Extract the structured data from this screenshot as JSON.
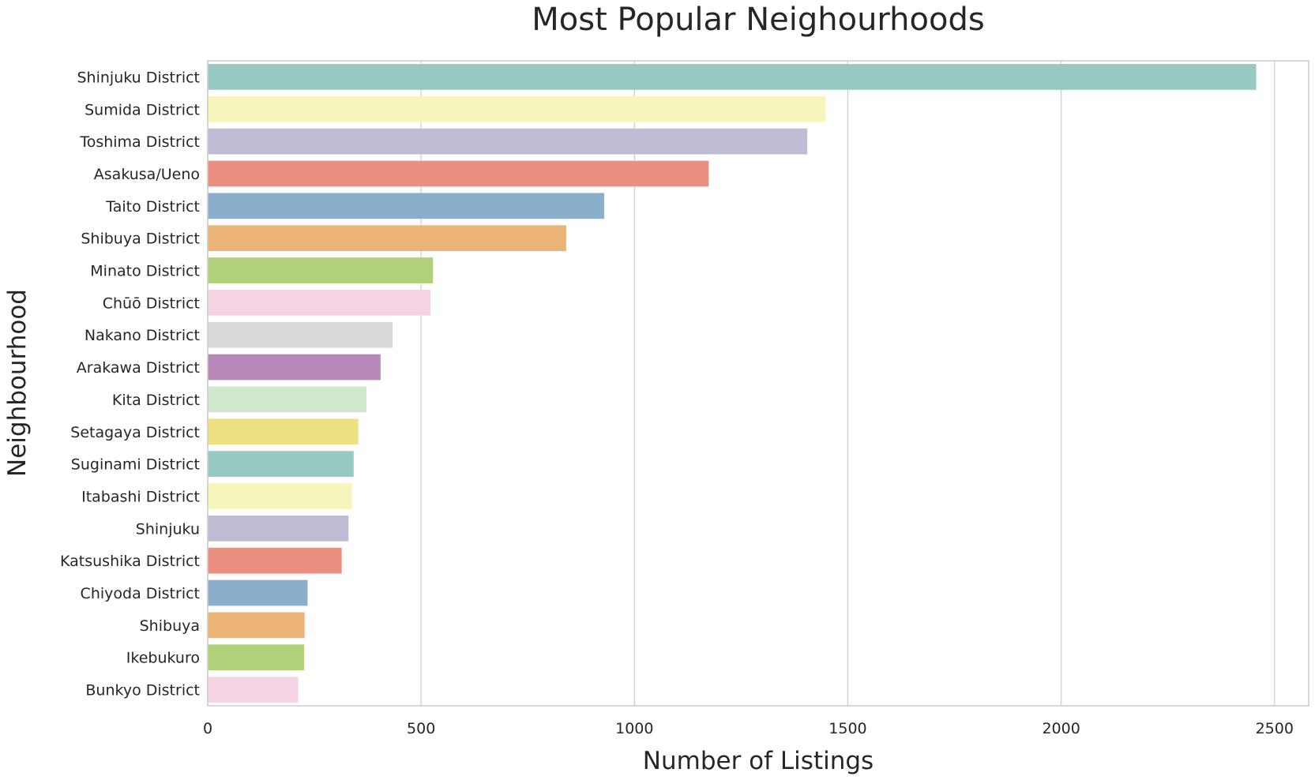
{
  "chart_data": {
    "type": "bar",
    "orientation": "horizontal",
    "title": "Most Popular Neighourhoods",
    "xlabel": "Number of Listings",
    "ylabel": "Neighbourhood",
    "xlim": [
      0,
      2580
    ],
    "xticks": [
      0,
      500,
      1000,
      1500,
      2000,
      2500
    ],
    "grid": true,
    "categories": [
      "Shinjuku District",
      "Sumida District",
      "Toshima District",
      "Asakusa/Ueno",
      "Taito District",
      "Shibuya District",
      "Minato District",
      "Chūō District",
      "Nakano District",
      "Arakawa District",
      "Kita District",
      "Setagaya District",
      "Suginami District",
      "Itabashi District",
      "Shinjuku",
      "Katsushika District",
      "Chiyoda District",
      "Shibuya",
      "Ikebukuro",
      "Bunkyo District"
    ],
    "values": [
      2457,
      1448,
      1405,
      1174,
      929,
      840,
      528,
      522,
      433,
      405,
      372,
      353,
      342,
      338,
      330,
      314,
      234,
      227,
      226,
      212
    ],
    "colors": [
      "#96cac1",
      "#f6f6bc",
      "#c0bcd6",
      "#eb8f81",
      "#8aafcb",
      "#ebb375",
      "#b0d07a",
      "#f6d3e4",
      "#d9d9d9",
      "#b888b8",
      "#cfe7cb",
      "#eee181",
      "#96cac1",
      "#f6f6bc",
      "#c0bcd6",
      "#eb8f81",
      "#8aafcb",
      "#ebb375",
      "#b0d07a",
      "#f6d3e4"
    ]
  }
}
